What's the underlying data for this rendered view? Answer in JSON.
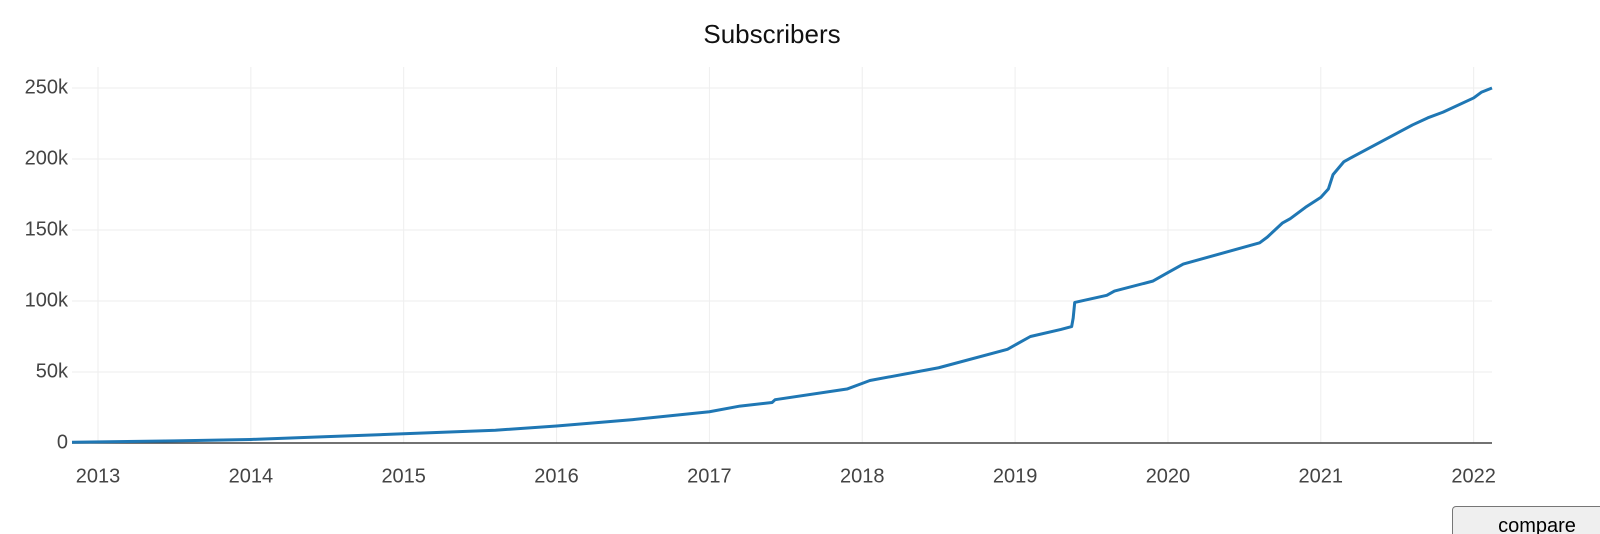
{
  "chart_data": {
    "type": "line",
    "title": "Subscribers",
    "x": [
      2012.83,
      2013.5,
      2014.0,
      2014.5,
      2015.0,
      2015.6,
      2016.0,
      2016.5,
      2017.0,
      2017.2,
      2017.41,
      2017.43,
      2017.9,
      2018.0,
      2018.05,
      2018.5,
      2018.95,
      2019.1,
      2019.3,
      2019.37,
      2019.38,
      2019.39,
      2019.6,
      2019.65,
      2019.9,
      2020.0,
      2020.1,
      2020.6,
      2020.65,
      2020.75,
      2020.8,
      2020.9,
      2021.0,
      2021.05,
      2021.08,
      2021.15,
      2021.2,
      2021.6,
      2021.7,
      2021.8,
      2022.0,
      2022.05,
      2022.12
    ],
    "values": [
      500,
      1500,
      2500,
      4500,
      6500,
      9000,
      12000,
      16500,
      22000,
      26000,
      28500,
      30500,
      38000,
      42000,
      44000,
      53000,
      66000,
      75000,
      80000,
      82000,
      88000,
      99000,
      104000,
      107000,
      114000,
      120000,
      126000,
      141000,
      145000,
      155000,
      158000,
      166000,
      173000,
      179000,
      189000,
      198000,
      201000,
      224000,
      229000,
      233000,
      243000,
      247000,
      250000
    ],
    "color": "#1f77b4",
    "xlim": [
      2012.83,
      2022.12
    ],
    "xticks": [
      2013,
      2014,
      2015,
      2016,
      2017,
      2018,
      2019,
      2020,
      2021,
      2022
    ],
    "ylim": [
      0,
      264800
    ],
    "yticks": [
      0,
      {
        "value": 50000,
        "label": "50k"
      },
      {
        "value": 100000,
        "label": "100k"
      },
      {
        "value": 150000,
        "label": "150k"
      },
      {
        "value": 200000,
        "label": "200k"
      },
      {
        "value": 250000,
        "label": "250k"
      }
    ],
    "grid": true
  },
  "controls": {
    "compare_button": "compare"
  }
}
